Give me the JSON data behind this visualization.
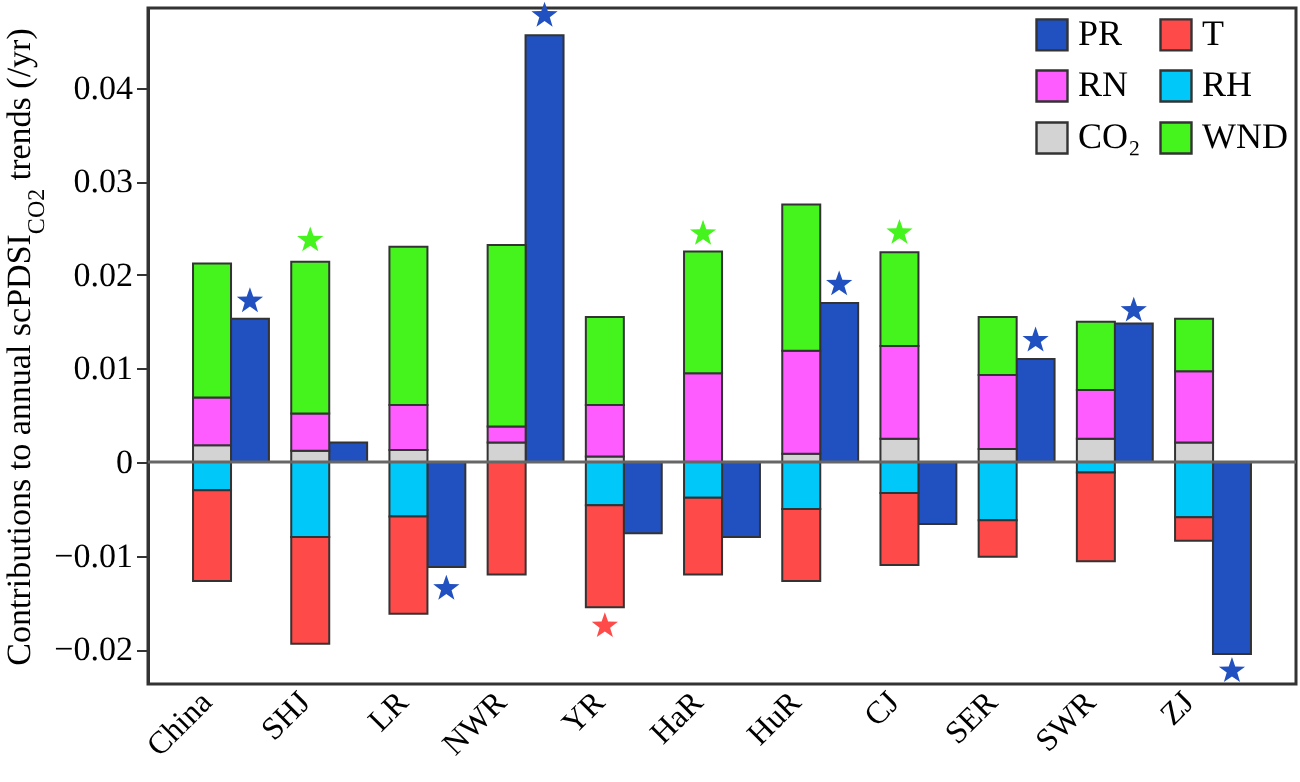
{
  "chart_data": {
    "type": "bar",
    "ylabel": "Contributions to annual scPDSI$_{CO2}$ trends (/yr)",
    "categories": [
      "China",
      null,
      "SHJ",
      null,
      "LR",
      null,
      "NWR",
      null,
      "YR",
      null,
      "HaR",
      null,
      "HuR",
      null,
      "CJ",
      null,
      "SER",
      null,
      "SWR",
      null,
      "ZJ",
      null
    ],
    "stacked": true,
    "legend": "top right",
    "grid": false,
    "ylim": [
      -0.0237,
      0.0485
    ],
    "yticks": [
      -0.02,
      -0.01,
      0,
      0.01,
      0.02,
      0.03,
      0.04
    ],
    "ref_lines": [
      {
        "axis": "y",
        "value": 0,
        "color": "#666666"
      }
    ],
    "series": [
      {
        "name": "PR",
        "color": "#2150c0",
        "values": [
          null,
          0.0153,
          null,
          0.0021,
          null,
          -0.0112,
          null,
          0.0456,
          null,
          -0.0076,
          null,
          -0.008,
          null,
          0.017,
          null,
          -0.0066,
          null,
          0.011,
          null,
          0.0148,
          null,
          -0.0205
        ]
      },
      {
        "name": "CO₂",
        "color": "#d3d3d3",
        "values": [
          0.0018,
          null,
          0.0012,
          null,
          0.0013,
          null,
          0.0021,
          null,
          0.0006,
          null,
          0,
          null,
          0.0009,
          null,
          0.0025,
          null,
          0.0014,
          null,
          0.0025,
          null,
          0.0021,
          null
        ]
      },
      {
        "name": "RH",
        "color": "#00c8f8",
        "values": [
          -0.003,
          null,
          -0.008,
          null,
          -0.0058,
          null,
          null,
          null,
          -0.0046,
          null,
          -0.0038,
          null,
          -0.005,
          null,
          -0.0033,
          null,
          -0.0062,
          null,
          -0.0011,
          null,
          -0.0059,
          null
        ]
      },
      {
        "name": "RN",
        "color": "#ff5cff",
        "values": [
          0.0051,
          null,
          0.004,
          null,
          0.0048,
          null,
          0.0017,
          null,
          0.0055,
          null,
          0.0095,
          null,
          0.011,
          null,
          0.0099,
          null,
          0.0079,
          null,
          0.0052,
          null,
          0.0076,
          null
        ]
      },
      {
        "name": "T",
        "color": "#ff4a4a",
        "values": [
          -0.0097,
          null,
          -0.0114,
          null,
          -0.0104,
          null,
          -0.012,
          null,
          -0.0109,
          null,
          -0.0082,
          null,
          -0.0077,
          null,
          -0.0077,
          null,
          -0.0039,
          null,
          -0.0095,
          null,
          -0.0025,
          null
        ]
      },
      {
        "name": "WND",
        "color": "#44f41c",
        "values": [
          0.0143,
          null,
          0.0162,
          null,
          0.0169,
          null,
          0.0194,
          null,
          0.0094,
          null,
          0.013,
          null,
          0.0156,
          null,
          0.01,
          null,
          0.0062,
          null,
          0.0073,
          null,
          0.0056,
          null
        ]
      },
      {
        "type": "scatter",
        "marker": "star",
        "values": [
          null,
          0.0172,
          0.0237,
          null,
          null,
          -0.0135,
          null,
          0.0477,
          -0.0175,
          null,
          0.0244,
          null,
          null,
          0.019,
          0.0245,
          null,
          null,
          0.013,
          null,
          0.0162,
          null,
          -0.0223
        ],
        "colors": [
          null,
          "#2150c0",
          "#44f41c",
          null,
          null,
          "#2150c0",
          null,
          "#2150c0",
          "#ff4a4a",
          null,
          "#44f41c",
          null,
          null,
          "#2150c0",
          "#44f41c",
          null,
          null,
          "#2150c0",
          null,
          "#2150c0",
          null,
          "#2150c0"
        ]
      }
    ]
  }
}
